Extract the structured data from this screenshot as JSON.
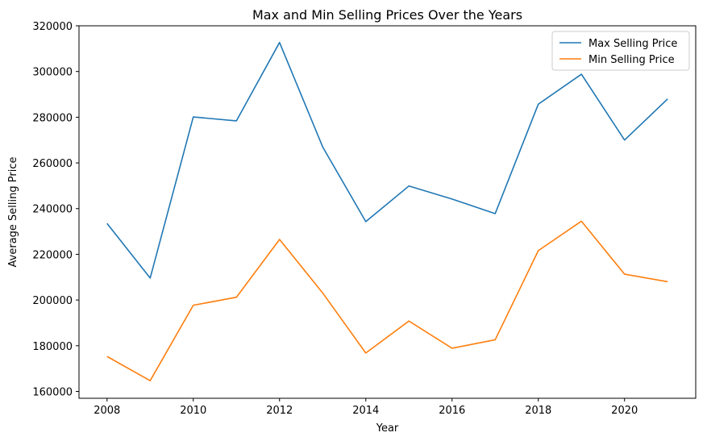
{
  "chart_data": {
    "type": "line",
    "title": "Max and Min Selling Prices Over the Years",
    "xlabel": "Year",
    "ylabel": "Average Selling Price",
    "x": [
      2008,
      2009,
      2010,
      2011,
      2012,
      2013,
      2014,
      2015,
      2016,
      2017,
      2018,
      2019,
      2020,
      2021
    ],
    "series": [
      {
        "name": "Max Selling Price",
        "color": "#1f77b4",
        "values": [
          233500,
          209600,
          280100,
          278400,
          312700,
          267000,
          234300,
          249900,
          244200,
          237800,
          285700,
          298800,
          270000,
          288000
        ]
      },
      {
        "name": "Min Selling Price",
        "color": "#ff7f0e",
        "values": [
          175300,
          164700,
          197700,
          201200,
          226500,
          203100,
          176800,
          190800,
          178900,
          182600,
          221600,
          234500,
          211300,
          208000
        ]
      }
    ],
    "xlim": [
      2007.35,
      2021.65
    ],
    "ylim": [
      157000,
      320000
    ],
    "xticks": [
      2008,
      2010,
      2012,
      2014,
      2016,
      2018,
      2020
    ],
    "yticks": [
      160000,
      180000,
      200000,
      220000,
      240000,
      260000,
      280000,
      300000,
      320000
    ],
    "grid": false,
    "legend_position": "upper-right"
  }
}
